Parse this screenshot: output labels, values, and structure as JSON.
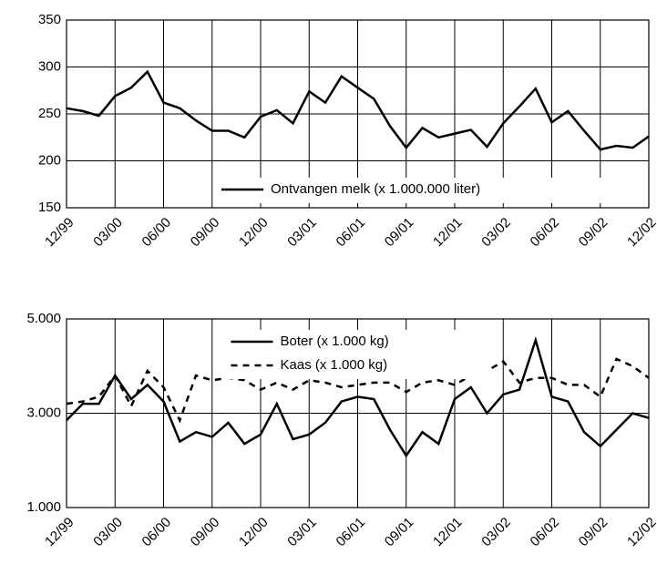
{
  "chart_data": [
    {
      "type": "line",
      "categories": [
        "12/99",
        null,
        null,
        "03/00",
        null,
        null,
        "06/00",
        null,
        null,
        "09/00",
        null,
        null,
        "12/00",
        null,
        null,
        "03/01",
        null,
        null,
        "06/01",
        null,
        null,
        "09/01",
        null,
        null,
        "12/01",
        null,
        null,
        "03/02",
        null,
        null,
        "06/02",
        null,
        null,
        "09/02",
        null,
        null,
        "12/02"
      ],
      "series": [
        {
          "name": "Ontvangen melk (x 1.000.000 liter)",
          "color": "#000000",
          "style": "solid",
          "values": [
            256,
            253,
            248,
            269,
            278,
            295,
            262,
            256,
            243,
            232,
            232,
            225,
            247,
            254,
            240,
            274,
            262,
            290,
            278,
            266,
            237,
            214,
            235,
            225,
            229,
            233,
            215,
            240,
            258,
            277,
            241,
            253,
            232,
            212,
            216,
            214,
            226
          ]
        }
      ],
      "ylim": [
        150,
        350
      ],
      "yticks": [
        150,
        200,
        250,
        300,
        350
      ],
      "grid": true,
      "legend": "lower right"
    },
    {
      "type": "line",
      "categories": [
        "12/99",
        null,
        null,
        "03/00",
        null,
        null,
        "06/00",
        null,
        null,
        "09/00",
        null,
        null,
        "12/00",
        null,
        null,
        "03/01",
        null,
        null,
        "06/01",
        null,
        null,
        "09/01",
        null,
        null,
        "12/01",
        null,
        null,
        "03/02",
        null,
        null,
        "06/02",
        null,
        null,
        "09/02",
        null,
        null,
        "12/02"
      ],
      "series": [
        {
          "name": "Boter (x 1.000 kg)",
          "color": "#000000",
          "style": "solid",
          "values": [
            2850,
            3200,
            3200,
            3800,
            3300,
            3600,
            3250,
            2400,
            2600,
            2500,
            2800,
            2350,
            2550,
            3200,
            2450,
            2550,
            2800,
            3250,
            3350,
            3300,
            2650,
            2100,
            2600,
            2350,
            3300,
            3550,
            3000,
            3400,
            3500,
            4550,
            3350,
            3250,
            2600,
            2300,
            2650,
            3000,
            2900
          ]
        },
        {
          "name": "Kaas (x 1.000 kg)",
          "color": "#000000",
          "style": "dashed",
          "values": [
            3200,
            3250,
            3350,
            3800,
            3150,
            3900,
            3550,
            2850,
            3800,
            3700,
            3750,
            3700,
            3500,
            3650,
            3500,
            3700,
            3650,
            3550,
            3600,
            3650,
            3650,
            3450,
            3650,
            3700,
            3600,
            3800,
            3900,
            4100,
            3650,
            3750,
            3750,
            3600,
            3600,
            3350,
            4150,
            4000,
            3750
          ]
        }
      ],
      "ylim": [
        1000,
        5000
      ],
      "yticks": [
        {
          "value": 1000,
          "label": "1.000"
        },
        {
          "value": 3000,
          "label": "3.000"
        },
        {
          "value": 5000,
          "label": "5.000"
        }
      ],
      "grid": true,
      "legend": "upper center"
    }
  ]
}
